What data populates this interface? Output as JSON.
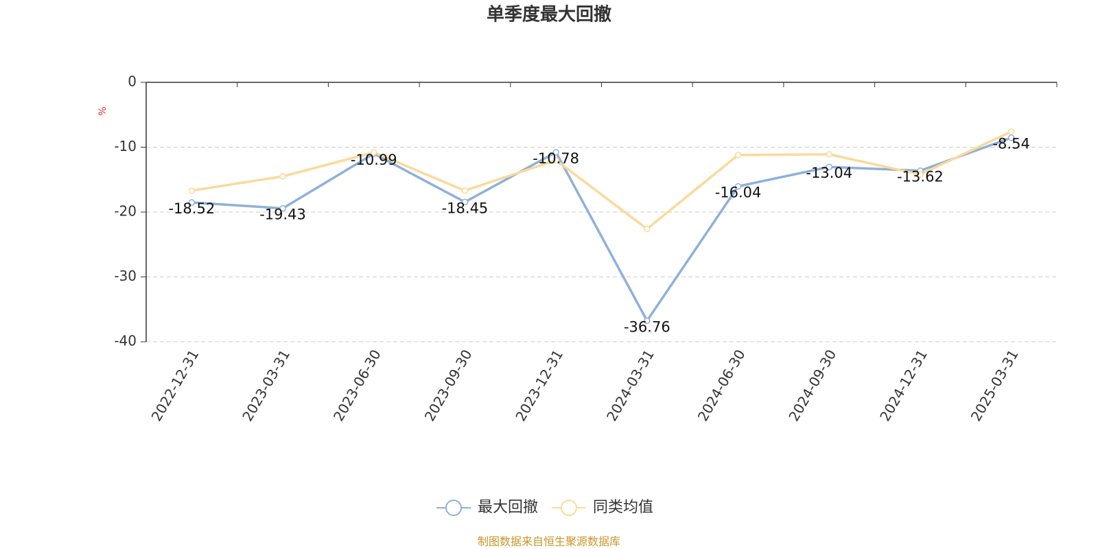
{
  "chart_data": {
    "type": "line",
    "title": "单季度最大回撤",
    "y_unit": "%",
    "categories": [
      "2022-12-31",
      "2023-03-31",
      "2023-06-30",
      "2023-09-30",
      "2023-12-31",
      "2024-03-31",
      "2024-06-30",
      "2024-09-30",
      "2024-12-31",
      "2025-03-31"
    ],
    "series": [
      {
        "name": "最大回撤",
        "color": "#8eb0db",
        "values": [
          -18.52,
          -19.43,
          -10.99,
          -18.45,
          -10.78,
          -36.76,
          -16.04,
          -13.04,
          -13.62,
          -8.54
        ],
        "show_labels": true
      },
      {
        "name": "同类均值",
        "color": "#fbd999",
        "values": [
          -16.7,
          -14.5,
          -10.8,
          -16.7,
          -12.0,
          -22.6,
          -11.2,
          -11.1,
          -14.2,
          -7.6
        ],
        "show_labels": false
      }
    ],
    "ylim": [
      -40,
      0
    ],
    "yticks": [
      0,
      -10,
      -20,
      -30,
      -40
    ],
    "grid": true,
    "legend": "bottom",
    "source": "制图数据来自恒生聚源数据库"
  }
}
